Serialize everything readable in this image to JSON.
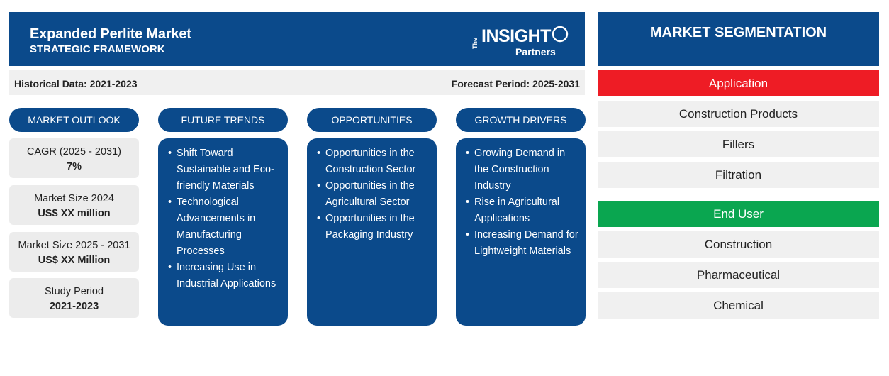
{
  "header": {
    "title": "Expanded Perlite Market",
    "subtitle": "STRATEGIC FRAMEWORK",
    "logo": {
      "the": "The",
      "insight": "INSIGHT",
      "partners": "Partners"
    }
  },
  "periods": {
    "historical": "Historical Data: 2021-2023",
    "forecast": "Forecast Period: 2025-2031"
  },
  "market_outlook": {
    "heading": "MARKET OUTLOOK",
    "stats": [
      {
        "label": "CAGR (2025 - 2031)",
        "value": "7%"
      },
      {
        "label": "Market Size 2024",
        "value": "US$ XX million"
      },
      {
        "label": "Market Size 2025 - 2031",
        "value": "US$ XX Million"
      },
      {
        "label": "Study Period",
        "value": "2021-2023"
      }
    ]
  },
  "future_trends": {
    "heading": "FUTURE TRENDS",
    "lines": [
      "Shift Toward Sustainable and Eco-friendly Materials",
      "Technological Advancements in Manufacturing Processes",
      "Increasing Use in Industrial Applications"
    ]
  },
  "opportunities": {
    "heading": "OPPORTUNITIES",
    "lines": [
      "Opportunities in the Construction Sector",
      "Opportunities in the Agricultural Sector",
      "Opportunities in the Packaging Industry"
    ]
  },
  "growth_drivers": {
    "heading": "GROWTH DRIVERS",
    "lines": [
      "Growing Demand in the Construction Industry",
      "Rise in Agricultural Applications",
      "Increasing Demand for Lightweight Materials"
    ]
  },
  "segmentation": {
    "heading": "MARKET SEGMENTATION",
    "application": {
      "label": "Application",
      "items": [
        "Construction Products",
        "Fillers",
        "Filtration"
      ]
    },
    "end_user": {
      "label": "End User",
      "items": [
        "Construction",
        "Pharmaceutical",
        "Chemical"
      ]
    }
  },
  "colors": {
    "navy": "#0b4a8b",
    "application_red": "#ee1c25",
    "end_user_green": "#0aa650",
    "panel_gray": "#f0f0f0"
  }
}
